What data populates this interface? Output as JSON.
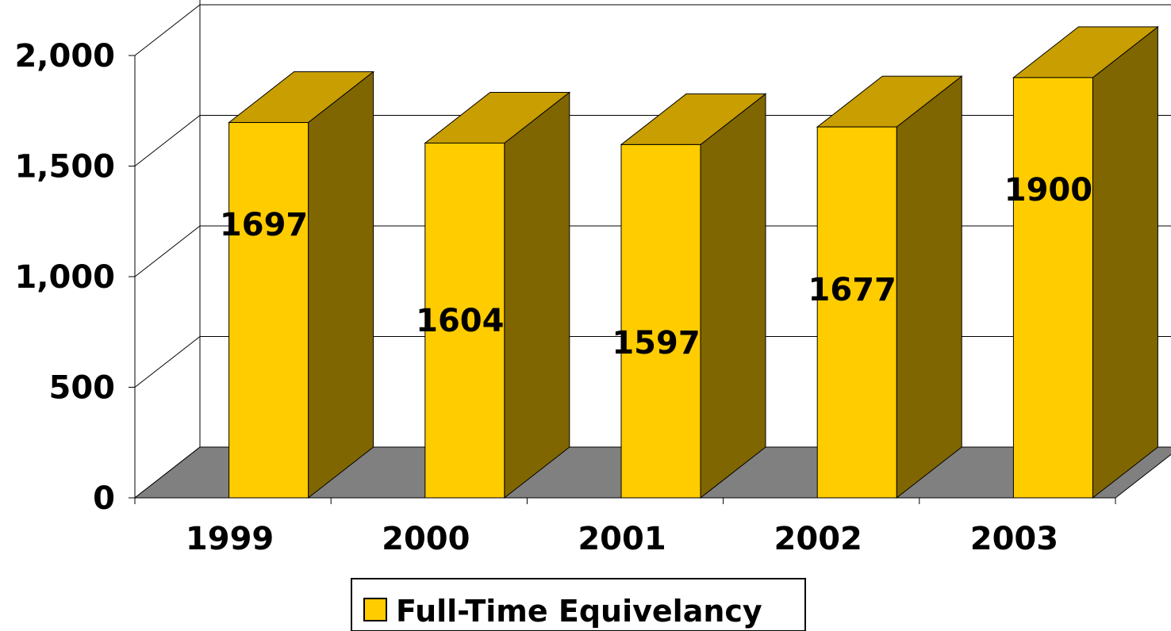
{
  "chart_data": {
    "type": "bar",
    "categories": [
      "1999",
      "2000",
      "2001",
      "2002",
      "2003"
    ],
    "series": [
      {
        "name": "Full-Time Equivelancy",
        "values": [
          1697,
          1604,
          1597,
          1677,
          1900
        ]
      }
    ],
    "data_labels": [
      "1697",
      "1604",
      "1597",
      "1677",
      "1900"
    ],
    "y_ticks": [
      "0",
      "500",
      "1,000",
      "1,500",
      "2,000"
    ],
    "ylim": [
      0,
      2000
    ],
    "title": "",
    "xlabel": "",
    "ylabel": "",
    "legend_position": "bottom-center",
    "gridlines": true,
    "three_d": true,
    "colors": {
      "bar_front": "#FFCC00",
      "bar_top": "#C89E00",
      "bar_side": "#806600",
      "floor": "#808080",
      "legend_swatch": "#FFCC00"
    }
  }
}
